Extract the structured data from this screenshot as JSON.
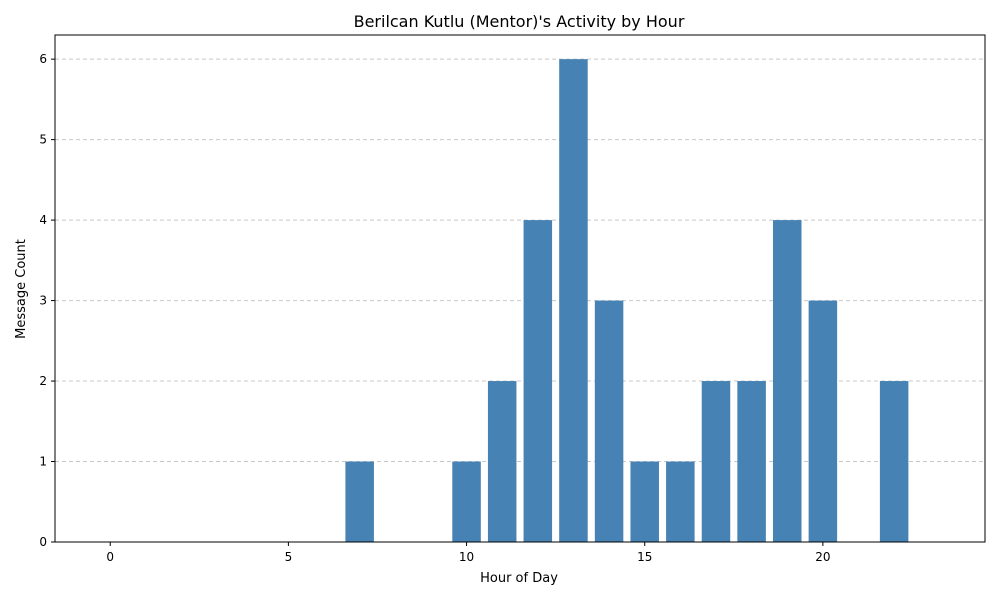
{
  "chart_data": {
    "type": "bar",
    "title": "Berilcan Kutlu (Mentor)'s Activity by Hour",
    "xlabel": "Hour of Day",
    "ylabel": "Message Count",
    "x": [
      0,
      1,
      2,
      3,
      4,
      5,
      6,
      7,
      8,
      9,
      10,
      11,
      12,
      13,
      14,
      15,
      16,
      17,
      18,
      19,
      20,
      21,
      22,
      23
    ],
    "values": [
      0,
      0,
      0,
      0,
      0,
      0,
      0,
      1,
      0,
      0,
      1,
      2,
      4,
      6,
      3,
      1,
      1,
      2,
      2,
      4,
      3,
      0,
      2,
      0
    ],
    "xlim": [
      -1.55,
      24.55
    ],
    "ylim": [
      0,
      6.3
    ],
    "xticks": [
      0,
      5,
      10,
      15,
      20
    ],
    "yticks": [
      0,
      1,
      2,
      3,
      4,
      5,
      6
    ],
    "bar_color": "#4682b4",
    "grid": "y-axis, dashed",
    "legend": "none"
  }
}
